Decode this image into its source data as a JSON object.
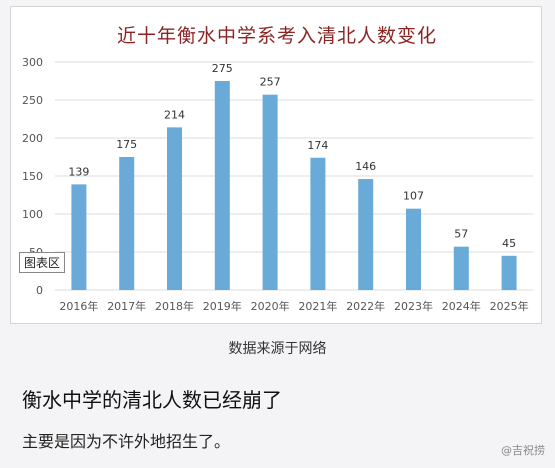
{
  "chart_data": {
    "type": "bar",
    "title": "近十年衡水中学系考入清北人数变化",
    "categories": [
      "2016年",
      "2017年",
      "2018年",
      "2019年",
      "2020年",
      "2021年",
      "2022年",
      "2023年",
      "2024年",
      "2025年"
    ],
    "values": [
      139,
      175,
      214,
      275,
      257,
      174,
      146,
      107,
      57,
      45
    ],
    "yticks": [
      "0",
      "50",
      "100",
      "150",
      "200",
      "250",
      "300"
    ],
    "ylim": [
      0,
      300
    ],
    "bar_color": "#6aaad8",
    "grid": true,
    "legend": "none"
  },
  "chart_area_label": "图表区",
  "source": "数据来源于网络",
  "headline": "衡水中学的清北人数已经崩了",
  "subline": "主要是因为不许外地招生了。",
  "watermark": "@吉祝捞"
}
